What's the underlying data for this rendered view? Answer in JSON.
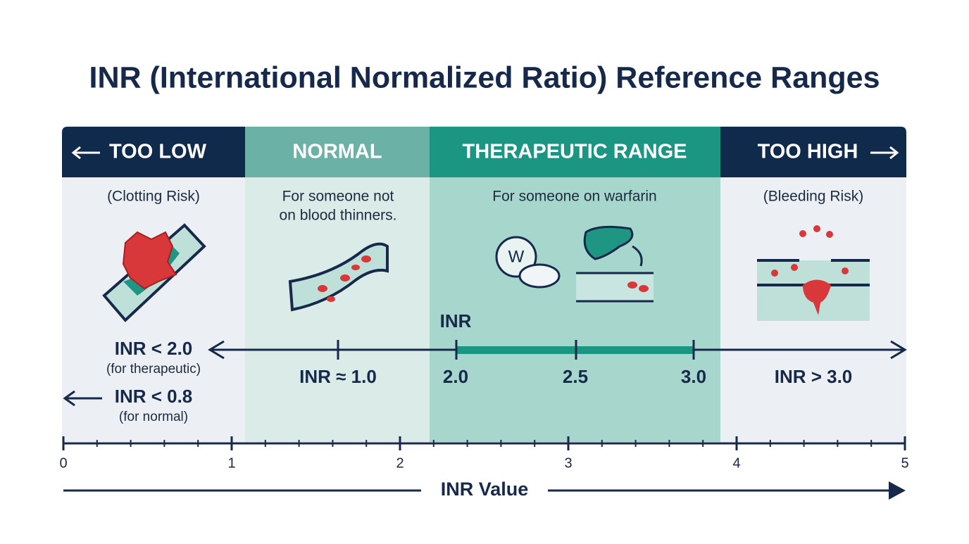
{
  "title": "INR (International Normalized Ratio) Reference Ranges",
  "columns": [
    {
      "header": "TOO LOW",
      "note": [
        "(Clotting Risk)"
      ]
    },
    {
      "header": "NORMAL",
      "note": [
        "For someone not",
        "on blood thinners."
      ]
    },
    {
      "header": "THERAPEUTIC RANGE",
      "note": [
        "For someone on warfarin"
      ],
      "icon_letter": "W"
    },
    {
      "header": "TOO HIGH",
      "note": [
        "(Bleeding Risk)"
      ]
    }
  ],
  "inr_scale": {
    "label": "INR",
    "ticks": [
      "2.0",
      "2.5",
      "3.0"
    ],
    "low": [
      "INR < 2.0",
      "(for therapeutic)"
    ],
    "low_normal": [
      "INR < 0.8",
      "(for normal)"
    ],
    "normal": "INR ≈ 1.0",
    "high": "INR > 3.0"
  },
  "axis": {
    "ticks": [
      "0",
      "1",
      "2",
      "3",
      "4",
      "5"
    ],
    "label": "INR Value"
  }
}
